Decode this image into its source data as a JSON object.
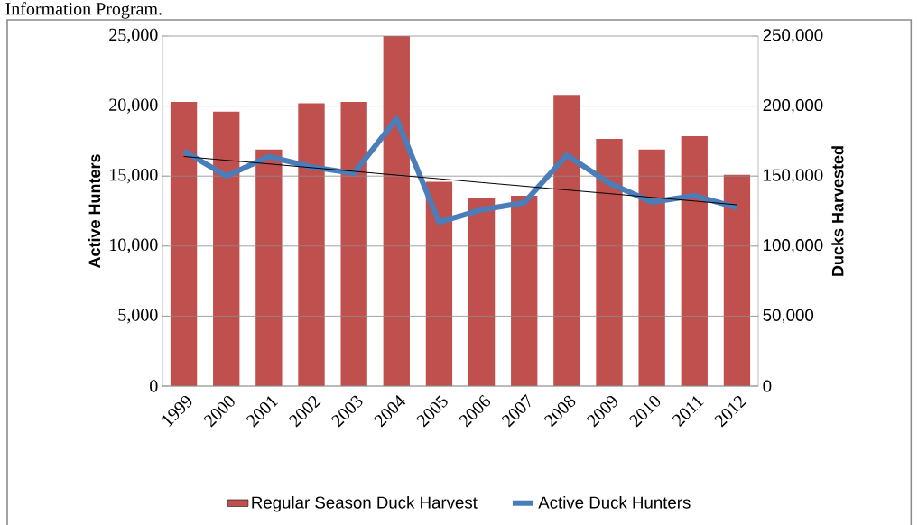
{
  "chart_data": {
    "type": "bar",
    "annotations": [
      "Information Program."
    ],
    "ylabel": "Active Hunters",
    "y2label": "Ducks Harvested",
    "categories": [
      "1999",
      "2000",
      "2001",
      "2002",
      "2003",
      "2004",
      "2005",
      "2006",
      "2007",
      "2008",
      "2009",
      "2010",
      "2011",
      "2012"
    ],
    "series": [
      {
        "name": "Regular Season Duck Harvest",
        "axis": "y2",
        "color": "#c0504d",
        "values": [
          203000,
          196000,
          169000,
          202000,
          203000,
          250000,
          146000,
          134000,
          136000,
          208000,
          176500,
          169000,
          178500,
          151000
        ]
      },
      {
        "name": "Active Duck Hunters",
        "type": "line",
        "color": "#4a7ebb",
        "values": [
          16800,
          15000,
          16400,
          15650,
          15200,
          19100,
          11700,
          12600,
          13100,
          16500,
          14500,
          13150,
          13600,
          12750
        ]
      },
      {
        "type": "line",
        "color": "#000000",
        "values": [
          16400,
          16130,
          15870,
          15600,
          15340,
          15070,
          14810,
          14540,
          14280,
          14010,
          13750,
          13480,
          13220,
          12950
        ]
      }
    ],
    "ylim": [
      0,
      25000
    ],
    "yticks": [
      {
        "value": 0,
        "label": "0"
      },
      {
        "value": 5000,
        "label": "5,000"
      },
      {
        "value": 10000,
        "label": "10,000"
      },
      {
        "value": 15000,
        "label": "15,000"
      },
      {
        "value": 20000,
        "label": "20,000"
      },
      {
        "value": 25000,
        "label": "25,000"
      }
    ],
    "y2lim": [
      0,
      250000
    ],
    "y2ticks": [
      {
        "value": 0,
        "label": "0"
      },
      {
        "value": 50000,
        "label": "50,000"
      },
      {
        "value": 100000,
        "label": "100,000"
      },
      {
        "value": 150000,
        "label": "150,000"
      },
      {
        "value": 200000,
        "label": "200,000"
      },
      {
        "value": 250000,
        "label": "250,000"
      }
    ],
    "grid": "y",
    "legend": "bottom"
  }
}
